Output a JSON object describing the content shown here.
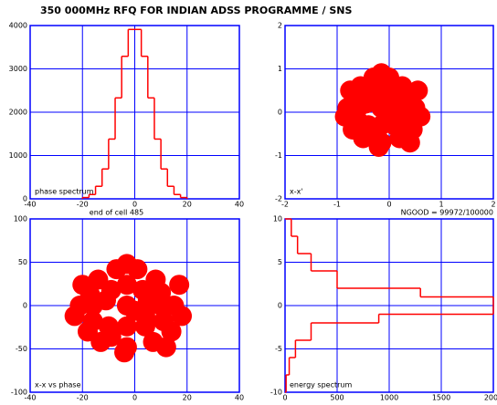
{
  "title": "350 000MHz RFQ FOR INDIAN ADSS PROGRAMME / SNS",
  "chart_data": [
    {
      "type": "histogram",
      "annotation": "phase spectrum",
      "xlabel": "end of cell 485",
      "bins": [
        -20,
        -17.5,
        -15,
        -12.5,
        -10,
        -7.5,
        -5,
        -2.5,
        0,
        2.5,
        5,
        7.5,
        10,
        12.5,
        15,
        17.5,
        20
      ],
      "counts": [
        30,
        100,
        290,
        690,
        1380,
        2330,
        3290,
        3910,
        3910,
        3290,
        2330,
        1380,
        690,
        290,
        100,
        30
      ],
      "color": "#ff0000",
      "xlim": [
        -40,
        40
      ],
      "xticks": [
        -40,
        -20,
        0,
        20,
        40
      ],
      "ylim": [
        0,
        4000
      ],
      "yticks": [
        0,
        1000,
        2000,
        3000,
        4000
      ],
      "grid": true
    },
    {
      "type": "scatter",
      "annotation": "x-x'",
      "note": "NGOOD = 99972/100000",
      "color": "#ff0000",
      "x": [
        -0.15,
        -0.6,
        0.3,
        -0.15,
        -0.15,
        -0.55,
        0.25,
        -0.8,
        0.5,
        -0.4,
        0.1,
        -0.7,
        0.45,
        -0.35,
        0.05,
        -0.15,
        -0.5,
        0.2,
        -0.75,
        0.55,
        -0.3,
        0.0,
        -0.6,
        0.35,
        -0.15,
        -0.45,
        0.15,
        -0.85,
        0.6,
        -0.2,
        0.4,
        -0.05,
        -0.65,
        0.3,
        -0.35,
        0.1
      ],
      "y": [
        0.1,
        0.1,
        0.1,
        0.9,
        -0.7,
        0.6,
        0.6,
        0.1,
        0.1,
        -0.3,
        -0.3,
        -0.4,
        -0.4,
        0.4,
        0.4,
        0.5,
        -0.6,
        -0.6,
        0.5,
        0.5,
        0.8,
        0.8,
        -0.2,
        -0.2,
        -0.3,
        0.2,
        0.2,
        -0.1,
        -0.1,
        -0.8,
        -0.7,
        0.0,
        0.3,
        0.35,
        -0.5,
        -0.1
      ],
      "xlim": [
        -2,
        2
      ],
      "xticks": [
        -2,
        -1,
        0,
        1,
        2
      ],
      "ylim": [
        -2,
        2
      ],
      "yticks": [
        -2,
        -1,
        0,
        1,
        2
      ],
      "grid": true
    },
    {
      "type": "scatter",
      "annotation": "x-x vs phase",
      "color": "#ff0000",
      "x": [
        -3,
        -16,
        10,
        -3,
        -3,
        -14,
        8,
        -21,
        15,
        -10,
        4,
        -18,
        14,
        -9,
        3,
        -3,
        -13,
        7,
        -20,
        17,
        -7,
        1,
        -16,
        11,
        -3,
        -11,
        5,
        -23,
        18,
        -4,
        12,
        0,
        -17,
        10,
        -9,
        4
      ],
      "y": [
        0,
        0,
        0,
        48,
        -48,
        30,
        30,
        0,
        0,
        -24,
        -24,
        -30,
        -30,
        18,
        18,
        24,
        -42,
        -42,
        24,
        24,
        42,
        42,
        -18,
        -18,
        -24,
        6,
        6,
        -12,
        -12,
        -54,
        -48,
        -6,
        12,
        15,
        -36,
        -12
      ],
      "xlim": [
        -40,
        40
      ],
      "xticks": [
        -40,
        -20,
        0,
        20,
        40
      ],
      "ylim": [
        -100,
        100
      ],
      "yticks": [
        -100,
        -50,
        0,
        50,
        100
      ],
      "grid": true
    },
    {
      "type": "hhistogram",
      "annotation": "energy spectrum",
      "color": "#ff0000",
      "bins": [
        -10,
        -8,
        -6,
        -4,
        -2,
        -1,
        0,
        1,
        2,
        4,
        6,
        8,
        10
      ],
      "counts": [
        10,
        40,
        100,
        250,
        900,
        2000,
        2000,
        1300,
        500,
        250,
        120,
        60
      ],
      "xlim": [
        0,
        2000
      ],
      "xticks": [
        0,
        500,
        1000,
        1500,
        2000
      ],
      "ylim": [
        -10,
        10
      ],
      "yticks": [
        -10,
        -5,
        0,
        5,
        10
      ],
      "grid": true
    }
  ]
}
